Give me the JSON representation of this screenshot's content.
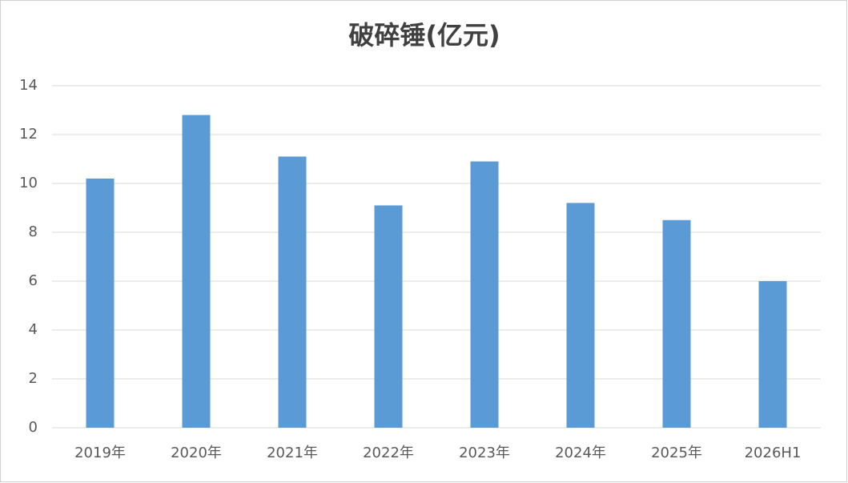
{
  "chart_data": {
    "type": "bar",
    "title": "破碎锤(亿元)",
    "categories": [
      "2019年",
      "2020年",
      "2021年",
      "2022年",
      "2023年",
      "2024年",
      "2025年",
      "2026H1"
    ],
    "values": [
      10.2,
      12.8,
      11.1,
      9.1,
      10.9,
      9.2,
      8.5,
      6.0
    ],
    "color": "#5b9bd5",
    "ylim": [
      0,
      14
    ],
    "yticks": [
      0,
      2,
      4,
      6,
      8,
      10,
      12,
      14
    ],
    "grid": true
  }
}
